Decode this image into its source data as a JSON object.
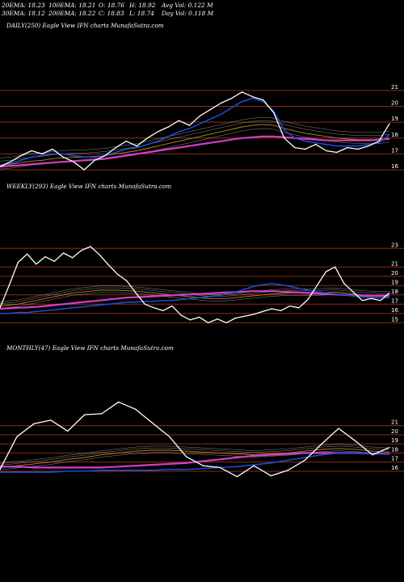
{
  "header": {
    "ema20": "20EMA: 18.23",
    "ema30": "30EMA: 18.12",
    "ema100": "100EMA: 18.21",
    "ema200": "200EMA: 18.22",
    "open": "O: 18.76",
    "close": "C: 18.83",
    "high": "H: 18.92",
    "low": "L: 18.74",
    "avg_vol": "Avg Vol: 0.122  M",
    "day_vol": "Day Vol: 0.118  M"
  },
  "colors": {
    "background": "#000000",
    "grid": "#8b2e14",
    "price": "#ffffff",
    "ema_fast": "#1c4fd8",
    "ema_slow": "#d83cc8",
    "ema_mid": "#b08a2a",
    "ema_other": "#c8c8c8"
  },
  "chart_data": [
    {
      "type": "line",
      "label": "DAILY(250) Eagle  View  IFN  charts MunafaSutra.com",
      "yticks": [
        21,
        20,
        19,
        18,
        17,
        16
      ],
      "ylim": [
        15.8,
        21.5
      ],
      "x_points": 38,
      "series": [
        {
          "role": "price",
          "values": [
            16.2,
            16.5,
            16.9,
            17.2,
            17.0,
            17.3,
            16.8,
            16.5,
            16.0,
            16.6,
            16.9,
            17.4,
            17.8,
            17.5,
            18.0,
            18.4,
            18.7,
            19.1,
            18.8,
            19.4,
            19.8,
            20.2,
            20.5,
            20.9,
            20.6,
            20.4,
            19.6,
            18.0,
            17.4,
            17.3,
            17.6,
            17.2,
            17.1,
            17.4,
            17.3,
            17.5,
            17.8,
            18.9
          ]
        },
        {
          "role": "ema_fast",
          "values": [
            16.3,
            16.4,
            16.6,
            16.8,
            16.9,
            17.0,
            17.0,
            16.9,
            16.8,
            16.8,
            16.9,
            17.1,
            17.3,
            17.4,
            17.6,
            17.8,
            18.1,
            18.4,
            18.6,
            18.9,
            19.2,
            19.5,
            19.9,
            20.3,
            20.5,
            20.3,
            19.7,
            18.5,
            18.0,
            17.8,
            17.7,
            17.6,
            17.5,
            17.5,
            17.5,
            17.6,
            17.7,
            18.2
          ]
        },
        {
          "role": "ema_slow",
          "values": [
            16.2,
            16.25,
            16.3,
            16.35,
            16.4,
            16.45,
            16.5,
            16.55,
            16.6,
            16.65,
            16.7,
            16.8,
            16.9,
            17.0,
            17.1,
            17.2,
            17.3,
            17.4,
            17.5,
            17.6,
            17.7,
            17.8,
            17.9,
            18.0,
            18.05,
            18.1,
            18.1,
            18.05,
            18.0,
            17.95,
            17.9,
            17.85,
            17.85,
            17.85,
            17.85,
            17.85,
            17.9,
            17.95
          ]
        },
        {
          "role": "ema_mid",
          "values": [
            16.3,
            16.35,
            16.45,
            16.55,
            16.6,
            16.7,
            16.75,
            16.8,
            16.8,
            16.85,
            16.9,
            17.0,
            17.1,
            17.2,
            17.35,
            17.5,
            17.65,
            17.8,
            17.95,
            18.1,
            18.25,
            18.4,
            18.55,
            18.7,
            18.8,
            18.85,
            18.8,
            18.6,
            18.45,
            18.3,
            18.2,
            18.1,
            18.0,
            17.95,
            17.9,
            17.9,
            17.9,
            18.0
          ]
        }
      ]
    },
    {
      "type": "line",
      "label": "WEEKLY(293) Eagle  View  IFN  charts MunafaSutra.com",
      "yticks": [
        23,
        21,
        20,
        19,
        18,
        17,
        16,
        15
      ],
      "ylim": [
        14.5,
        24.5
      ],
      "x_points": 44,
      "series": [
        {
          "role": "price",
          "values": [
            16.6,
            19.0,
            21.5,
            22.4,
            21.3,
            22.1,
            21.6,
            22.5,
            22.0,
            22.8,
            23.2,
            22.3,
            21.2,
            20.2,
            19.5,
            18.2,
            17.0,
            16.6,
            16.3,
            16.8,
            15.8,
            15.3,
            15.6,
            15.0,
            15.4,
            15.0,
            15.5,
            15.7,
            15.9,
            16.2,
            16.5,
            16.3,
            16.8,
            16.6,
            17.5,
            19.0,
            20.5,
            21.0,
            19.2,
            18.3,
            17.4,
            17.6,
            17.4,
            18.2
          ]
        },
        {
          "role": "ema_fast",
          "values": [
            16.0,
            16.0,
            16.1,
            16.1,
            16.2,
            16.3,
            16.4,
            16.5,
            16.6,
            16.7,
            16.8,
            16.9,
            17.0,
            17.1,
            17.2,
            17.2,
            17.3,
            17.3,
            17.4,
            17.4,
            17.5,
            17.6,
            17.7,
            17.8,
            17.9,
            18.1,
            18.3,
            18.6,
            18.9,
            19.1,
            19.2,
            19.1,
            18.9,
            18.7,
            18.5,
            18.3,
            18.2,
            18.1,
            18.0,
            17.9,
            17.8,
            17.7,
            17.7,
            17.7
          ]
        },
        {
          "role": "ema_slow",
          "values": [
            16.5,
            16.55,
            16.6,
            16.65,
            16.7,
            16.8,
            16.9,
            17.0,
            17.1,
            17.2,
            17.3,
            17.4,
            17.5,
            17.6,
            17.7,
            17.75,
            17.8,
            17.85,
            17.9,
            17.95,
            18.0,
            18.05,
            18.1,
            18.15,
            18.2,
            18.25,
            18.3,
            18.35,
            18.4,
            18.4,
            18.4,
            18.35,
            18.3,
            18.25,
            18.2,
            18.15,
            18.1,
            18.05,
            18.0,
            17.95,
            17.9,
            17.9,
            17.9,
            17.9
          ]
        },
        {
          "role": "ema_mid",
          "values": [
            16.8,
            16.9,
            17.0,
            17.2,
            17.4,
            17.6,
            17.8,
            18.0,
            18.2,
            18.3,
            18.4,
            18.5,
            18.5,
            18.5,
            18.45,
            18.4,
            18.3,
            18.2,
            18.1,
            18.0,
            17.9,
            17.8,
            17.7,
            17.6,
            17.6,
            17.6,
            17.7,
            17.8,
            17.9,
            18.0,
            18.1,
            18.15,
            18.2,
            18.2,
            18.2,
            18.2,
            18.25,
            18.3,
            18.2,
            18.1,
            18.0,
            17.95,
            17.9,
            17.9
          ]
        }
      ]
    },
    {
      "type": "line",
      "label": "MONTHLY(47) Eagle  View  IFN  charts MunafaSutra.com",
      "yticks": [
        21,
        20,
        19,
        18,
        17,
        16
      ],
      "ylim": [
        13.6,
        23.8
      ],
      "x_points": 24,
      "series": [
        {
          "role": "price",
          "values": [
            16.2,
            19.8,
            21.2,
            21.6,
            20.4,
            22.2,
            22.3,
            23.6,
            22.8,
            21.3,
            19.8,
            17.6,
            16.6,
            16.4,
            15.4,
            16.6,
            15.5,
            16.1,
            17.2,
            19.0,
            20.7,
            19.3,
            17.8,
            18.6
          ]
        },
        {
          "role": "ema_fast",
          "values": [
            15.9,
            15.9,
            15.9,
            15.9,
            16.0,
            16.0,
            16.1,
            16.1,
            16.1,
            16.1,
            16.2,
            16.2,
            16.3,
            16.4,
            16.5,
            16.7,
            16.9,
            17.2,
            17.5,
            17.8,
            18.0,
            18.0,
            17.9,
            17.9
          ]
        },
        {
          "role": "ema_slow",
          "values": [
            16.5,
            16.5,
            16.4,
            16.4,
            16.4,
            16.4,
            16.4,
            16.5,
            16.6,
            16.7,
            16.8,
            16.9,
            17.1,
            17.3,
            17.5,
            17.7,
            17.8,
            17.9,
            18.0,
            18.0,
            18.0,
            18.0,
            17.95,
            17.9
          ]
        },
        {
          "role": "ema_mid",
          "values": [
            16.4,
            16.6,
            16.8,
            17.0,
            17.3,
            17.5,
            17.8,
            18.0,
            18.2,
            18.3,
            18.3,
            18.2,
            18.1,
            18.0,
            17.9,
            17.8,
            17.9,
            18.0,
            18.2,
            18.4,
            18.5,
            18.4,
            18.2,
            18.1
          ]
        }
      ]
    }
  ]
}
